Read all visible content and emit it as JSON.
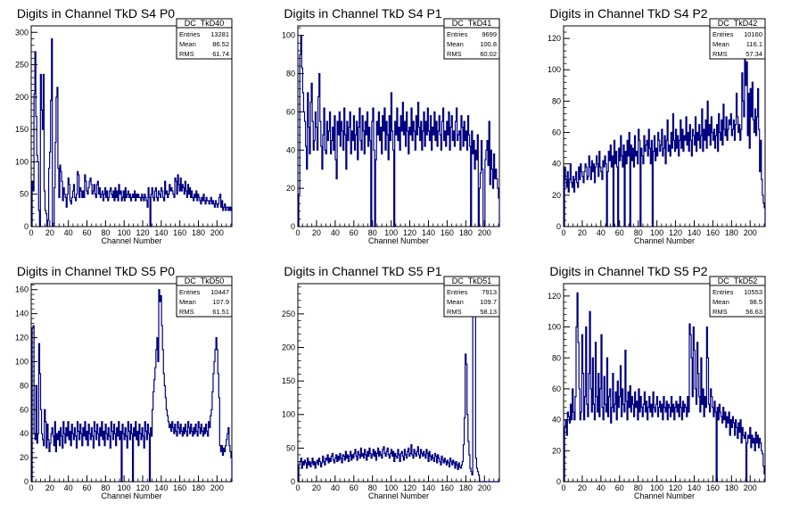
{
  "chart_data": [
    {
      "type": "histogram",
      "title": "Digits in Channel TkD S4 P0",
      "xlabel": "Channel Number",
      "xlim": [
        0,
        216
      ],
      "ylim": [
        0,
        310
      ],
      "xticks": [
        0,
        20,
        40,
        60,
        80,
        100,
        120,
        140,
        160,
        180,
        200
      ],
      "yticks": [
        0,
        50,
        100,
        150,
        200,
        250,
        300
      ],
      "stats": {
        "name": "DC_TkD40",
        "entries": "13281",
        "mean": "86.52",
        "rms": "61.74"
      },
      "values": [
        0,
        70,
        55,
        205,
        270,
        170,
        110,
        100,
        25,
        0,
        235,
        180,
        150,
        235,
        55,
        25,
        20,
        0,
        10,
        90,
        115,
        195,
        290,
        0,
        5,
        60,
        130,
        200,
        215,
        90,
        45,
        95,
        85,
        70,
        40,
        60,
        50,
        45,
        30,
        50,
        75,
        65,
        40,
        35,
        45,
        55,
        65,
        45,
        40,
        50,
        85,
        80,
        45,
        60,
        55,
        45,
        55,
        45,
        80,
        70,
        55,
        50,
        60,
        70,
        75,
        65,
        50,
        55,
        65,
        50,
        45,
        65,
        70,
        50,
        60,
        45,
        50,
        55,
        40,
        50,
        60,
        45,
        55,
        40,
        45,
        55,
        60,
        50,
        45,
        55,
        40,
        60,
        45,
        55,
        40,
        65,
        50,
        55,
        40,
        45,
        55,
        40,
        60,
        45,
        50,
        55,
        45,
        50,
        40,
        45,
        50,
        45,
        55,
        40,
        50,
        45,
        50,
        45,
        45,
        40,
        50,
        45,
        40,
        50,
        45,
        40,
        30,
        60,
        45,
        0,
        50,
        60,
        45,
        40,
        55,
        60,
        45,
        40,
        55,
        50,
        45,
        60,
        55,
        45,
        40,
        70,
        50,
        55,
        45,
        50,
        65,
        55,
        60,
        55,
        50,
        45,
        75,
        70,
        50,
        80,
        65,
        55,
        75,
        55,
        65,
        60,
        50,
        70,
        55,
        45,
        65,
        50,
        60,
        45,
        55,
        45,
        40,
        50,
        45,
        55,
        40,
        50,
        45,
        40,
        35,
        45,
        40,
        50,
        40,
        35,
        45,
        40,
        40,
        35,
        40,
        45,
        35,
        40,
        35,
        30,
        40,
        35,
        30,
        35,
        45,
        50,
        30,
        40,
        25,
        30,
        35,
        25,
        30,
        30,
        25,
        30,
        25,
        30
      ]
    },
    {
      "type": "histogram",
      "title": "Digits in Channel TkD S4 P1",
      "xlabel": "Channel Number",
      "xlim": [
        0,
        216
      ],
      "ylim": [
        0,
        105
      ],
      "xticks": [
        0,
        20,
        40,
        60,
        80,
        100,
        120,
        140,
        160,
        180,
        200
      ],
      "yticks": [
        0,
        20,
        40,
        60,
        80,
        100
      ],
      "stats": {
        "name": "DC_TkD41",
        "entries": "9699",
        "mean": "100.8",
        "rms": "60.02"
      },
      "values": [
        0,
        17,
        90,
        100,
        83,
        70,
        60,
        55,
        42,
        30,
        70,
        52,
        38,
        65,
        75,
        55,
        40,
        45,
        60,
        52,
        40,
        68,
        80,
        55,
        42,
        30,
        48,
        62,
        40,
        38,
        55,
        45,
        50,
        60,
        38,
        45,
        52,
        40,
        58,
        35,
        25,
        55,
        48,
        60,
        42,
        55,
        50,
        40,
        62,
        48,
        30,
        55,
        45,
        52,
        60,
        38,
        50,
        45,
        58,
        40,
        48,
        55,
        35,
        52,
        62,
        45,
        40,
        58,
        50,
        38,
        55,
        48,
        60,
        42,
        52,
        45,
        0,
        55,
        62,
        40,
        0,
        35,
        55,
        48,
        60,
        45,
        52,
        38,
        58,
        50,
        62,
        40,
        55,
        48,
        35,
        58,
        45,
        70,
        50,
        40,
        0,
        55,
        48,
        62,
        45,
        52,
        40,
        58,
        50,
        65,
        48,
        55,
        42,
        60,
        50,
        38,
        52,
        48,
        62,
        45,
        55,
        50,
        40,
        58,
        48,
        65,
        52,
        45,
        55,
        40,
        50,
        60,
        42,
        55,
        48,
        62,
        50,
        45,
        58,
        40,
        52,
        48,
        60,
        45,
        55,
        42,
        50,
        58,
        48,
        40,
        55,
        62,
        45,
        50,
        42,
        55,
        48,
        60,
        40,
        52,
        58,
        45,
        50,
        42,
        55,
        62,
        45,
        48,
        50,
        40,
        58,
        52,
        42,
        55,
        45,
        50,
        40,
        58,
        48,
        42,
        0,
        50,
        38,
        45,
        30,
        40,
        35,
        48,
        0,
        20,
        28,
        45,
        30,
        0,
        0,
        35,
        40,
        45,
        32,
        55,
        22,
        40,
        30,
        20,
        38,
        25,
        30,
        25,
        20,
        15
      ]
    },
    {
      "type": "histogram",
      "title": "Digits in Channel TkD S4 P2",
      "xlabel": "Channel Number",
      "xlim": [
        0,
        216
      ],
      "ylim": [
        0,
        128
      ],
      "xticks": [
        0,
        20,
        40,
        60,
        80,
        100,
        120,
        140,
        160,
        180,
        200
      ],
      "yticks": [
        0,
        20,
        40,
        60,
        80,
        100,
        120
      ],
      "stats": {
        "name": "DC_TkD42",
        "entries": "10160",
        "mean": "116.1",
        "rms": "57.34"
      },
      "values": [
        0,
        38,
        30,
        25,
        35,
        22,
        30,
        40,
        28,
        25,
        32,
        22,
        30,
        35,
        28,
        25,
        38,
        30,
        40,
        35,
        32,
        28,
        35,
        40,
        38,
        30,
        32,
        45,
        38,
        30,
        42,
        35,
        40,
        28,
        38,
        45,
        40,
        32,
        48,
        38,
        35,
        30,
        42,
        38,
        45,
        40,
        0,
        35,
        48,
        42,
        52,
        38,
        45,
        0,
        55,
        40,
        48,
        38,
        0,
        50,
        42,
        58,
        45,
        38,
        52,
        0,
        48,
        40,
        55,
        45,
        60,
        0,
        52,
        42,
        50,
        38,
        58,
        45,
        48,
        40,
        62,
        55,
        0,
        50,
        45,
        40,
        58,
        48,
        52,
        55,
        45,
        62,
        50,
        40,
        55,
        0,
        48,
        58,
        42,
        50,
        45,
        60,
        55,
        48,
        52,
        62,
        45,
        50,
        58,
        40,
        55,
        68,
        48,
        52,
        45,
        60,
        50,
        72,
        55,
        48,
        62,
        50,
        58,
        45,
        55,
        68,
        50,
        62,
        48,
        58,
        55,
        70,
        52,
        60,
        48,
        65,
        55,
        45,
        62,
        58,
        52,
        70,
        48,
        60,
        55,
        65,
        50,
        58,
        75,
        48,
        62,
        55,
        68,
        50,
        80,
        58,
        65,
        52,
        70,
        60,
        55,
        62,
        50,
        58,
        65,
        48,
        72,
        60,
        55,
        68,
        52,
        78,
        62,
        58,
        70,
        55,
        62,
        68,
        65,
        72,
        58,
        62,
        68,
        55,
        65,
        85,
        70,
        60,
        65,
        55,
        62,
        98,
        80,
        70,
        110,
        90,
        105,
        58,
        85,
        50,
        88,
        70,
        92,
        68,
        60,
        75,
        58,
        70,
        88,
        62,
        35,
        55,
        30,
        20,
        15,
        12
      ]
    },
    {
      "type": "histogram",
      "title": "Digits in Channel TkD S5 P0",
      "xlabel": "Channel Number",
      "xlim": [
        0,
        216
      ],
      "ylim": [
        0,
        165
      ],
      "xticks": [
        0,
        20,
        40,
        60,
        80,
        100,
        120,
        140,
        160,
        180,
        200
      ],
      "yticks": [
        0,
        20,
        40,
        60,
        80,
        100,
        120,
        140,
        160
      ],
      "stats": {
        "name": "DC_TkD50",
        "entries": "10447",
        "mean": "107.9",
        "rms": "61.51"
      },
      "values": [
        0,
        128,
        130,
        40,
        35,
        80,
        32,
        40,
        115,
        90,
        60,
        40,
        35,
        30,
        60,
        50,
        28,
        48,
        35,
        25,
        32,
        40,
        45,
        38,
        30,
        50,
        25,
        40,
        35,
        42,
        30,
        45,
        38,
        28,
        50,
        40,
        32,
        45,
        38,
        50,
        35,
        42,
        30,
        48,
        40,
        35,
        45,
        38,
        28,
        50,
        42,
        35,
        48,
        40,
        30,
        45,
        38,
        50,
        35,
        42,
        30,
        48,
        40,
        35,
        45,
        38,
        28,
        50,
        42,
        35,
        48,
        40,
        30,
        45,
        38,
        50,
        35,
        42,
        30,
        48,
        40,
        35,
        45,
        38,
        28,
        50,
        42,
        35,
        48,
        40,
        30,
        45,
        38,
        50,
        35,
        42,
        0,
        48,
        40,
        35,
        45,
        38,
        28,
        50,
        42,
        35,
        48,
        40,
        0,
        45,
        38,
        50,
        35,
        42,
        30,
        48,
        40,
        35,
        45,
        38,
        28,
        50,
        42,
        35,
        48,
        40,
        0,
        45,
        38,
        60,
        75,
        85,
        95,
        110,
        120,
        100,
        160,
        150,
        155,
        130,
        110,
        90,
        80,
        70,
        60,
        55,
        50,
        45,
        48,
        42,
        50,
        45,
        40,
        48,
        42,
        38,
        50,
        45,
        40,
        48,
        42,
        38,
        45,
        40,
        48,
        42,
        38,
        50,
        45,
        40,
        48,
        42,
        38,
        45,
        40,
        48,
        42,
        38,
        50,
        45,
        40,
        48,
        42,
        38,
        45,
        40,
        48,
        42,
        38,
        50,
        45,
        55,
        60,
        75,
        90,
        100,
        110,
        120,
        110,
        90,
        70,
        30,
        25,
        30,
        22,
        28,
        25,
        30,
        35,
        40,
        45,
        30,
        25,
        20
      ]
    },
    {
      "type": "histogram",
      "title": "Digits in Channel TkD S5 P1",
      "xlabel": "Channel Number",
      "xlim": [
        0,
        216
      ],
      "ylim": [
        0,
        295
      ],
      "xticks": [
        0,
        20,
        40,
        60,
        80,
        100,
        120,
        140,
        160,
        180,
        200
      ],
      "yticks": [
        0,
        50,
        100,
        150,
        200,
        250
      ],
      "stats": {
        "name": "DC_TkD51",
        "entries": "7913",
        "mean": "109.7",
        "rms": "58.13"
      },
      "values": [
        0,
        25,
        30,
        35,
        20,
        30,
        25,
        32,
        28,
        20,
        35,
        25,
        30,
        22,
        28,
        35,
        25,
        30,
        20,
        28,
        32,
        25,
        35,
        30,
        22,
        28,
        38,
        30,
        25,
        35,
        32,
        40,
        28,
        35,
        30,
        38,
        42,
        32,
        28,
        35,
        40,
        30,
        38,
        32,
        42,
        35,
        28,
        40,
        38,
        32,
        45,
        35,
        40,
        30,
        38,
        45,
        32,
        40,
        35,
        42,
        48,
        38,
        32,
        45,
        40,
        35,
        50,
        38,
        42,
        35,
        48,
        40,
        32,
        45,
        38,
        50,
        42,
        35,
        40,
        48,
        38,
        45,
        32,
        42,
        50,
        38,
        45,
        40,
        35,
        48,
        52,
        42,
        38,
        45,
        50,
        40,
        35,
        42,
        48,
        38,
        45,
        30,
        42,
        38,
        35,
        48,
        40,
        30,
        42,
        45,
        38,
        32,
        48,
        40,
        35,
        45,
        50,
        38,
        42,
        55,
        40,
        35,
        48,
        42,
        38,
        45,
        52,
        40,
        35,
        48,
        42,
        38,
        45,
        40,
        35,
        48,
        42,
        30,
        45,
        38,
        32,
        40,
        35,
        30,
        42,
        38,
        28,
        40,
        35,
        30,
        25,
        38,
        32,
        28,
        35,
        30,
        25,
        32,
        28,
        22,
        35,
        30,
        25,
        32,
        28,
        20,
        30,
        25,
        18,
        28,
        22,
        20,
        25,
        30,
        55,
        95,
        190,
        175,
        100,
        60,
        40,
        20,
        15,
        10,
        280,
        290,
        280,
        35,
        20,
        15,
        10,
        0,
        0,
        0,
        0,
        0,
        0,
        0,
        0,
        0,
        0,
        0,
        0,
        0,
        0,
        0,
        0,
        0,
        0,
        0,
        0,
        0
      ]
    },
    {
      "type": "histogram",
      "title": "Digits in Channel TkD S5 P2",
      "xlabel": "Channel Number",
      "xlim": [
        0,
        216
      ],
      "ylim": [
        0,
        128
      ],
      "xticks": [
        0,
        20,
        40,
        60,
        80,
        100,
        120,
        140,
        160,
        180,
        200
      ],
      "yticks": [
        0,
        20,
        40,
        60,
        80,
        100,
        120
      ],
      "stats": {
        "name": "DC_TkD52",
        "entries": "10553",
        "mean": "98.5",
        "rms": "56.63"
      },
      "values": [
        0,
        35,
        40,
        30,
        45,
        42,
        38,
        50,
        40,
        60,
        45,
        40,
        55,
        100,
        122,
        90,
        60,
        40,
        45,
        95,
        70,
        40,
        55,
        100,
        50,
        42,
        70,
        110,
        60,
        45,
        80,
        50,
        40,
        90,
        55,
        45,
        70,
        42,
        60,
        95,
        48,
        40,
        68,
        50,
        45,
        80,
        42,
        55,
        60,
        38,
        48,
        70,
        45,
        50,
        58,
        40,
        65,
        48,
        55,
        75,
        42,
        60,
        50,
        45,
        85,
        52,
        40,
        58,
        48,
        62,
        45,
        55,
        50,
        42,
        58,
        48,
        52,
        40,
        60,
        45,
        55,
        48,
        42,
        50,
        58,
        45,
        52,
        40,
        48,
        55,
        45,
        50,
        42,
        58,
        48,
        45,
        50,
        55,
        42,
        48,
        52,
        45,
        50,
        40,
        55,
        48,
        45,
        52,
        40,
        50,
        48,
        42,
        55,
        45,
        50,
        40,
        48,
        52,
        45,
        50,
        42,
        55,
        48,
        40,
        52,
        45,
        50,
        48,
        42,
        55,
        45,
        102,
        95,
        80,
        55,
        100,
        85,
        60,
        50,
        90,
        70,
        55,
        45,
        80,
        50,
        60,
        42,
        55,
        48,
        100,
        80,
        50,
        45,
        60,
        55,
        48,
        42,
        52,
        45,
        0,
        48,
        40,
        50,
        45,
        42,
        38,
        48,
        40,
        45,
        35,
        42,
        38,
        45,
        30,
        40,
        35,
        42,
        38,
        30,
        40,
        35,
        28,
        38,
        32,
        40,
        25,
        35,
        30,
        28,
        32,
        0,
        25,
        30,
        28,
        35,
        22,
        30,
        25,
        28,
        20,
        32,
        25,
        30,
        22,
        28,
        25,
        20,
        18,
        10,
        5
      ]
    }
  ]
}
